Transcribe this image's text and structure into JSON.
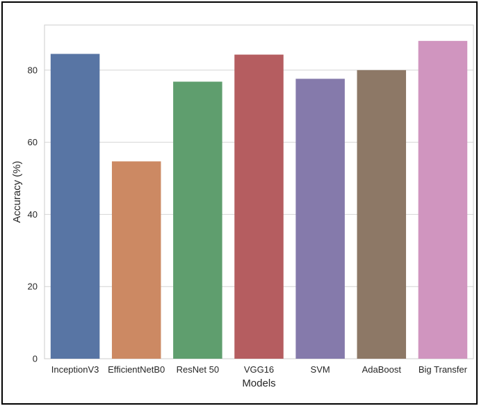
{
  "chart_data": {
    "type": "bar",
    "categories": [
      "InceptionV3",
      "EfficientNetB0",
      "ResNet 50",
      "VGG16",
      "SVM",
      "AdaBoost",
      "Big Transfer"
    ],
    "values": [
      84.5,
      54.7,
      76.8,
      84.3,
      77.6,
      80.0,
      88.1
    ],
    "colors": [
      "#5875a4",
      "#cc8963",
      "#5f9e6e",
      "#b55d60",
      "#857aab",
      "#8d7866",
      "#d095bf"
    ],
    "xlabel": "Models",
    "ylabel": "Accuracy (%)",
    "ylim": [
      0,
      92.5
    ],
    "yticks": [
      0,
      20,
      40,
      60,
      80
    ],
    "grid": true,
    "background": "#ffffff",
    "grid_color": "#d4d4d4"
  }
}
